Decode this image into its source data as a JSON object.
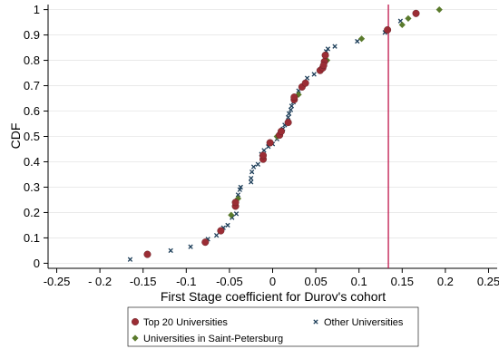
{
  "chart_data": {
    "type": "scatter",
    "xlabel": "First Stage coefficient for Durov's cohort",
    "ylabel": "CDF",
    "xlim": [
      -0.26,
      0.26
    ],
    "ylim": [
      -0.02,
      1.02
    ],
    "x_ticks": [
      -0.25,
      -0.2,
      -0.15,
      -0.1,
      -0.05,
      0,
      0.05,
      0.1,
      0.15,
      0.2,
      0.25
    ],
    "x_tick_labels": [
      "-0.25",
      "- 0.2",
      "-0.15",
      "-0.1",
      "-0.05",
      "0",
      "0.05",
      "0.1",
      "0.15",
      "0.2",
      "0.25"
    ],
    "y_ticks": [
      0,
      0.1,
      0.2,
      0.3,
      0.4,
      0.5,
      0.6,
      0.7,
      0.8,
      0.9,
      1
    ],
    "y_tick_labels": [
      "0",
      "0.1",
      "0.2",
      "0.3",
      "0.4",
      "0.5",
      "0.6",
      "0.7",
      "0.8",
      "0.9",
      "1"
    ],
    "grid": "horizontal",
    "reference_line": {
      "x": 0.134,
      "color": "#c0164c"
    },
    "legend_position": "bottom",
    "series": [
      {
        "name": "Top 20 Universities",
        "marker": "circle",
        "color": "#9b2d35",
        "points": [
          [
            -0.145,
            0.035
          ],
          [
            -0.078,
            0.083
          ],
          [
            -0.06,
            0.128
          ],
          [
            -0.043,
            0.225
          ],
          [
            -0.043,
            0.24
          ],
          [
            -0.003,
            0.475
          ],
          [
            -0.011,
            0.41
          ],
          [
            -0.011,
            0.425
          ],
          [
            0.008,
            0.505
          ],
          [
            0.01,
            0.52
          ],
          [
            0.018,
            0.555
          ],
          [
            0.025,
            0.645
          ],
          [
            0.025,
            0.655
          ],
          [
            0.034,
            0.695
          ],
          [
            0.038,
            0.71
          ],
          [
            0.055,
            0.76
          ],
          [
            0.058,
            0.77
          ],
          [
            0.06,
            0.795
          ],
          [
            0.059,
            0.78
          ],
          [
            0.061,
            0.82
          ],
          [
            0.133,
            0.92
          ],
          [
            0.166,
            0.985
          ]
        ]
      },
      {
        "name": "Other Universities",
        "marker": "x",
        "color": "#1e3f5a",
        "points": [
          [
            -0.165,
            0.015
          ],
          [
            -0.118,
            0.05
          ],
          [
            -0.095,
            0.065
          ],
          [
            -0.075,
            0.095
          ],
          [
            -0.065,
            0.11
          ],
          [
            -0.057,
            0.14
          ],
          [
            -0.052,
            0.15
          ],
          [
            -0.047,
            0.18
          ],
          [
            -0.042,
            0.195
          ],
          [
            -0.04,
            0.27
          ],
          [
            -0.038,
            0.29
          ],
          [
            -0.037,
            0.3
          ],
          [
            -0.025,
            0.32
          ],
          [
            -0.025,
            0.335
          ],
          [
            -0.024,
            0.36
          ],
          [
            -0.022,
            0.38
          ],
          [
            -0.017,
            0.39
          ],
          [
            -0.013,
            0.43
          ],
          [
            -0.01,
            0.445
          ],
          [
            -0.005,
            0.46
          ],
          [
            0.0,
            0.47
          ],
          [
            0.005,
            0.49
          ],
          [
            0.012,
            0.53
          ],
          [
            0.014,
            0.545
          ],
          [
            0.018,
            0.575
          ],
          [
            0.019,
            0.59
          ],
          [
            0.021,
            0.605
          ],
          [
            0.022,
            0.62
          ],
          [
            0.024,
            0.635
          ],
          [
            0.03,
            0.68
          ],
          [
            0.04,
            0.73
          ],
          [
            0.048,
            0.745
          ],
          [
            0.062,
            0.835
          ],
          [
            0.064,
            0.845
          ],
          [
            0.072,
            0.855
          ],
          [
            0.098,
            0.875
          ],
          [
            0.13,
            0.91
          ],
          [
            0.148,
            0.955
          ]
        ]
      },
      {
        "name": "Universities in Saint-Petersburg",
        "marker": "diamond",
        "color": "#5a7a2c",
        "points": [
          [
            -0.048,
            0.19
          ],
          [
            -0.04,
            0.255
          ],
          [
            0.005,
            0.5
          ],
          [
            0.03,
            0.665
          ],
          [
            0.063,
            0.8
          ],
          [
            0.103,
            0.885
          ],
          [
            0.15,
            0.94
          ],
          [
            0.157,
            0.965
          ],
          [
            0.193,
            1.0
          ]
        ]
      }
    ]
  }
}
